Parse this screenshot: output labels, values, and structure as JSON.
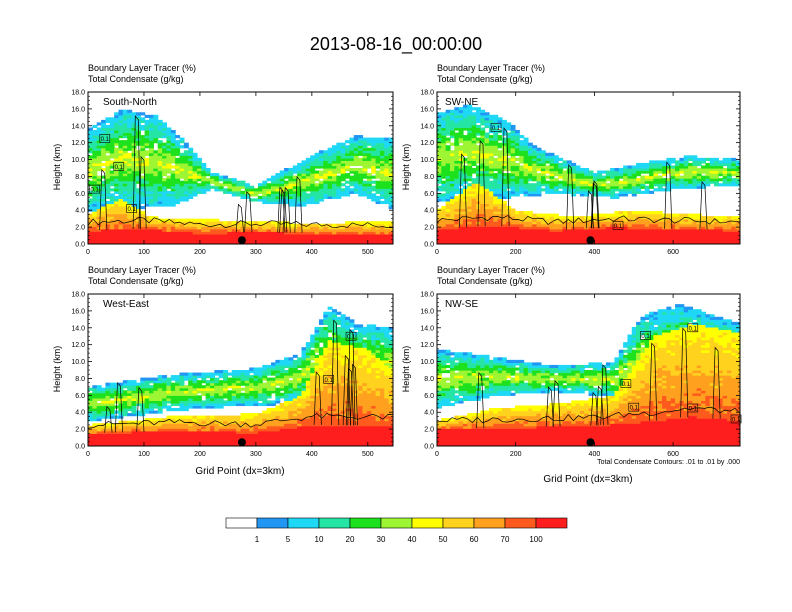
{
  "title": "2013-08-16_00:00:00",
  "colors": {
    "levels": [
      "#ffffff",
      "#2196f3",
      "#1ed8f5",
      "#24e5a4",
      "#1ee11e",
      "#9ef533",
      "#ffff00",
      "#ffd21e",
      "#ffa01e",
      "#ff5a1e",
      "#ff1e1e"
    ],
    "contour": "#000000",
    "marker": "#000000"
  },
  "colorbar": {
    "labels": [
      "1",
      "5",
      "10",
      "20",
      "30",
      "40",
      "50",
      "60",
      "70",
      "100"
    ]
  },
  "chart_data": [
    {
      "type": "heatmap",
      "panel": "south-north",
      "title_lines": [
        "Boundary Layer Tracer   (%)",
        "Total Condensate   (g/kg)"
      ],
      "label": "South-North",
      "ylabel": "Height (km)",
      "xlabel": "",
      "ylim": [
        0,
        18
      ],
      "xlim": [
        0,
        545
      ],
      "xticks": [
        "0",
        "100",
        "200",
        "300",
        "400",
        "500"
      ],
      "yticks": [
        "0.0",
        "2.0",
        "4.0",
        "6.0",
        "8.0",
        "10.0",
        "12.0",
        "14.0",
        "16.0",
        "18.0"
      ],
      "marker_x": 275,
      "contour_labels": [
        {
          "text": "0.1",
          "x": 30,
          "y": 12.5
        },
        {
          "text": "0.1",
          "x": 12,
          "y": 6.5
        },
        {
          "text": "0.1",
          "x": 55,
          "y": 9.2
        },
        {
          "text": "0.1",
          "x": 78,
          "y": 4.2
        }
      ],
      "profile": {
        "red_top": [
          [
            0,
            1.6
          ],
          [
            100,
            1.8
          ],
          [
            200,
            1.3
          ],
          [
            300,
            1.4
          ],
          [
            400,
            1.3
          ],
          [
            545,
            1.2
          ]
        ],
        "bl_top": [
          [
            0,
            3.5
          ],
          [
            60,
            5.5
          ],
          [
            110,
            3.2
          ],
          [
            160,
            3.0
          ],
          [
            260,
            2.8
          ],
          [
            380,
            2.5
          ],
          [
            545,
            2.6
          ]
        ],
        "cloud_top": [
          [
            0,
            13.5
          ],
          [
            60,
            16.0
          ],
          [
            120,
            15.2
          ],
          [
            170,
            12.5
          ],
          [
            220,
            8.5
          ],
          [
            300,
            7.0
          ],
          [
            400,
            10.5
          ],
          [
            480,
            12.8
          ],
          [
            545,
            12.5
          ]
        ],
        "cloud_base": [
          [
            0,
            4.0
          ],
          [
            150,
            4.5
          ],
          [
            220,
            6.5
          ],
          [
            300,
            5.0
          ],
          [
            380,
            4.5
          ],
          [
            480,
            6.0
          ],
          [
            545,
            4.0
          ]
        ]
      }
    },
    {
      "type": "heatmap",
      "panel": "sw-ne",
      "title_lines": [
        "Boundary Layer Tracer   (%)",
        "Total Condensate   (g/kg)"
      ],
      "label": "SW-NE",
      "ylabel": "Height (km)",
      "xlabel": "",
      "ylim": [
        0,
        18
      ],
      "xlim": [
        0,
        770
      ],
      "xticks": [
        "0",
        "200",
        "400",
        "600"
      ],
      "yticks": [
        "0.0",
        "2.0",
        "4.0",
        "6.0",
        "8.0",
        "10.0",
        "12.0",
        "14.0",
        "16.0",
        "18.0"
      ],
      "marker_x": 390,
      "contour_labels": [
        {
          "text": "0.1",
          "x": 150,
          "y": 13.8
        },
        {
          "text": "0.1",
          "x": 460,
          "y": 2.2
        }
      ],
      "profile": {
        "red_top": [
          [
            0,
            1.8
          ],
          [
            150,
            2.2
          ],
          [
            300,
            1.6
          ],
          [
            450,
            2.0
          ],
          [
            600,
            1.8
          ],
          [
            770,
            1.6
          ]
        ],
        "bl_top": [
          [
            0,
            4.0
          ],
          [
            100,
            7.5
          ],
          [
            200,
            4.0
          ],
          [
            350,
            3.2
          ],
          [
            500,
            4.0
          ],
          [
            650,
            3.5
          ],
          [
            770,
            3.2
          ]
        ],
        "cloud_top": [
          [
            0,
            15.5
          ],
          [
            80,
            16.6
          ],
          [
            180,
            14.5
          ],
          [
            250,
            11.5
          ],
          [
            400,
            8.5
          ],
          [
            550,
            9.8
          ],
          [
            650,
            10.5
          ],
          [
            770,
            10.0
          ]
        ],
        "cloud_base": [
          [
            0,
            5.0
          ],
          [
            180,
            5.5
          ],
          [
            300,
            6.0
          ],
          [
            450,
            5.5
          ],
          [
            600,
            6.5
          ],
          [
            770,
            7.0
          ]
        ]
      }
    },
    {
      "type": "heatmap",
      "panel": "west-east",
      "title_lines": [
        "Boundary Layer Tracer   (%)",
        "Total Condensate   (g/kg)"
      ],
      "label": "West-East",
      "ylabel": "Height (km)",
      "xlabel": "Grid Point (dx=3km)",
      "ylim": [
        0,
        18
      ],
      "xlim": [
        0,
        545
      ],
      "xticks": [
        "0",
        "100",
        "200",
        "300",
        "400",
        "500"
      ],
      "yticks": [
        "0.0",
        "2.0",
        "4.0",
        "6.0",
        "8.0",
        "10.0",
        "12.0",
        "14.0",
        "16.0",
        "18.0"
      ],
      "marker_x": 275,
      "contour_labels": [
        {
          "text": "0.1",
          "x": 430,
          "y": 7.9
        },
        {
          "text": "0.1",
          "x": 470,
          "y": 13.0
        }
      ],
      "profile": {
        "red_top": [
          [
            0,
            1.5
          ],
          [
            150,
            1.8
          ],
          [
            300,
            1.6
          ],
          [
            400,
            2.5
          ],
          [
            545,
            2.4
          ]
        ],
        "bl_top": [
          [
            0,
            2.5
          ],
          [
            150,
            3.5
          ],
          [
            300,
            3.8
          ],
          [
            380,
            6.0
          ],
          [
            430,
            12.5
          ],
          [
            500,
            11.5
          ],
          [
            545,
            9.0
          ]
        ],
        "cloud_top": [
          [
            0,
            7.0
          ],
          [
            150,
            8.5
          ],
          [
            300,
            9.2
          ],
          [
            380,
            11.0
          ],
          [
            430,
            16.5
          ],
          [
            480,
            14.5
          ],
          [
            545,
            14.0
          ]
        ],
        "cloud_base": [
          [
            0,
            3.0
          ],
          [
            200,
            4.5
          ],
          [
            350,
            5.0
          ],
          [
            420,
            6.0
          ],
          [
            545,
            5.0
          ]
        ]
      }
    },
    {
      "type": "heatmap",
      "panel": "nw-se",
      "title_lines": [
        "Boundary Layer Tracer   (%)",
        "Total Condensate   (g/kg)"
      ],
      "label": "NW-SE",
      "ylabel": "Height (km)",
      "xlabel": "Grid Point (dx=3km)",
      "ylim": [
        0,
        18
      ],
      "xlim": [
        0,
        770
      ],
      "xticks": [
        "0",
        "200",
        "400",
        "600"
      ],
      "yticks": [
        "0.0",
        "2.0",
        "4.0",
        "6.0",
        "8.0",
        "10.0",
        "12.0",
        "14.0",
        "16.0",
        "18.0"
      ],
      "marker_x": 390,
      "footnote": "Total Condensate Contours: .01 to .01 by .000",
      "contour_labels": [
        {
          "text": "0.1",
          "x": 480,
          "y": 7.4
        },
        {
          "text": "0.1",
          "x": 500,
          "y": 4.6
        },
        {
          "text": "0.1",
          "x": 530,
          "y": 13.1
        },
        {
          "text": "0.1",
          "x": 650,
          "y": 14.0
        },
        {
          "text": "0.1",
          "x": 650,
          "y": 4.5
        },
        {
          "text": "0.1",
          "x": 760,
          "y": 3.2
        }
      ],
      "profile": {
        "red_top": [
          [
            0,
            2.0
          ],
          [
            200,
            2.2
          ],
          [
            400,
            2.4
          ],
          [
            550,
            3.0
          ],
          [
            650,
            3.5
          ],
          [
            770,
            3.0
          ]
        ],
        "bl_top": [
          [
            0,
            3.0
          ],
          [
            150,
            4.5
          ],
          [
            300,
            5.0
          ],
          [
            450,
            6.0
          ],
          [
            550,
            13.0
          ],
          [
            650,
            14.5
          ],
          [
            770,
            13.5
          ]
        ],
        "cloud_top": [
          [
            0,
            11.5
          ],
          [
            150,
            10.5
          ],
          [
            300,
            9.5
          ],
          [
            450,
            10.0
          ],
          [
            520,
            15.5
          ],
          [
            620,
            16.8
          ],
          [
            700,
            15.5
          ],
          [
            770,
            14.5
          ]
        ],
        "cloud_base": [
          [
            0,
            4.5
          ],
          [
            150,
            6.0
          ],
          [
            300,
            6.5
          ],
          [
            420,
            6.0
          ],
          [
            550,
            4.5
          ],
          [
            700,
            5.0
          ],
          [
            770,
            4.5
          ]
        ]
      }
    }
  ]
}
